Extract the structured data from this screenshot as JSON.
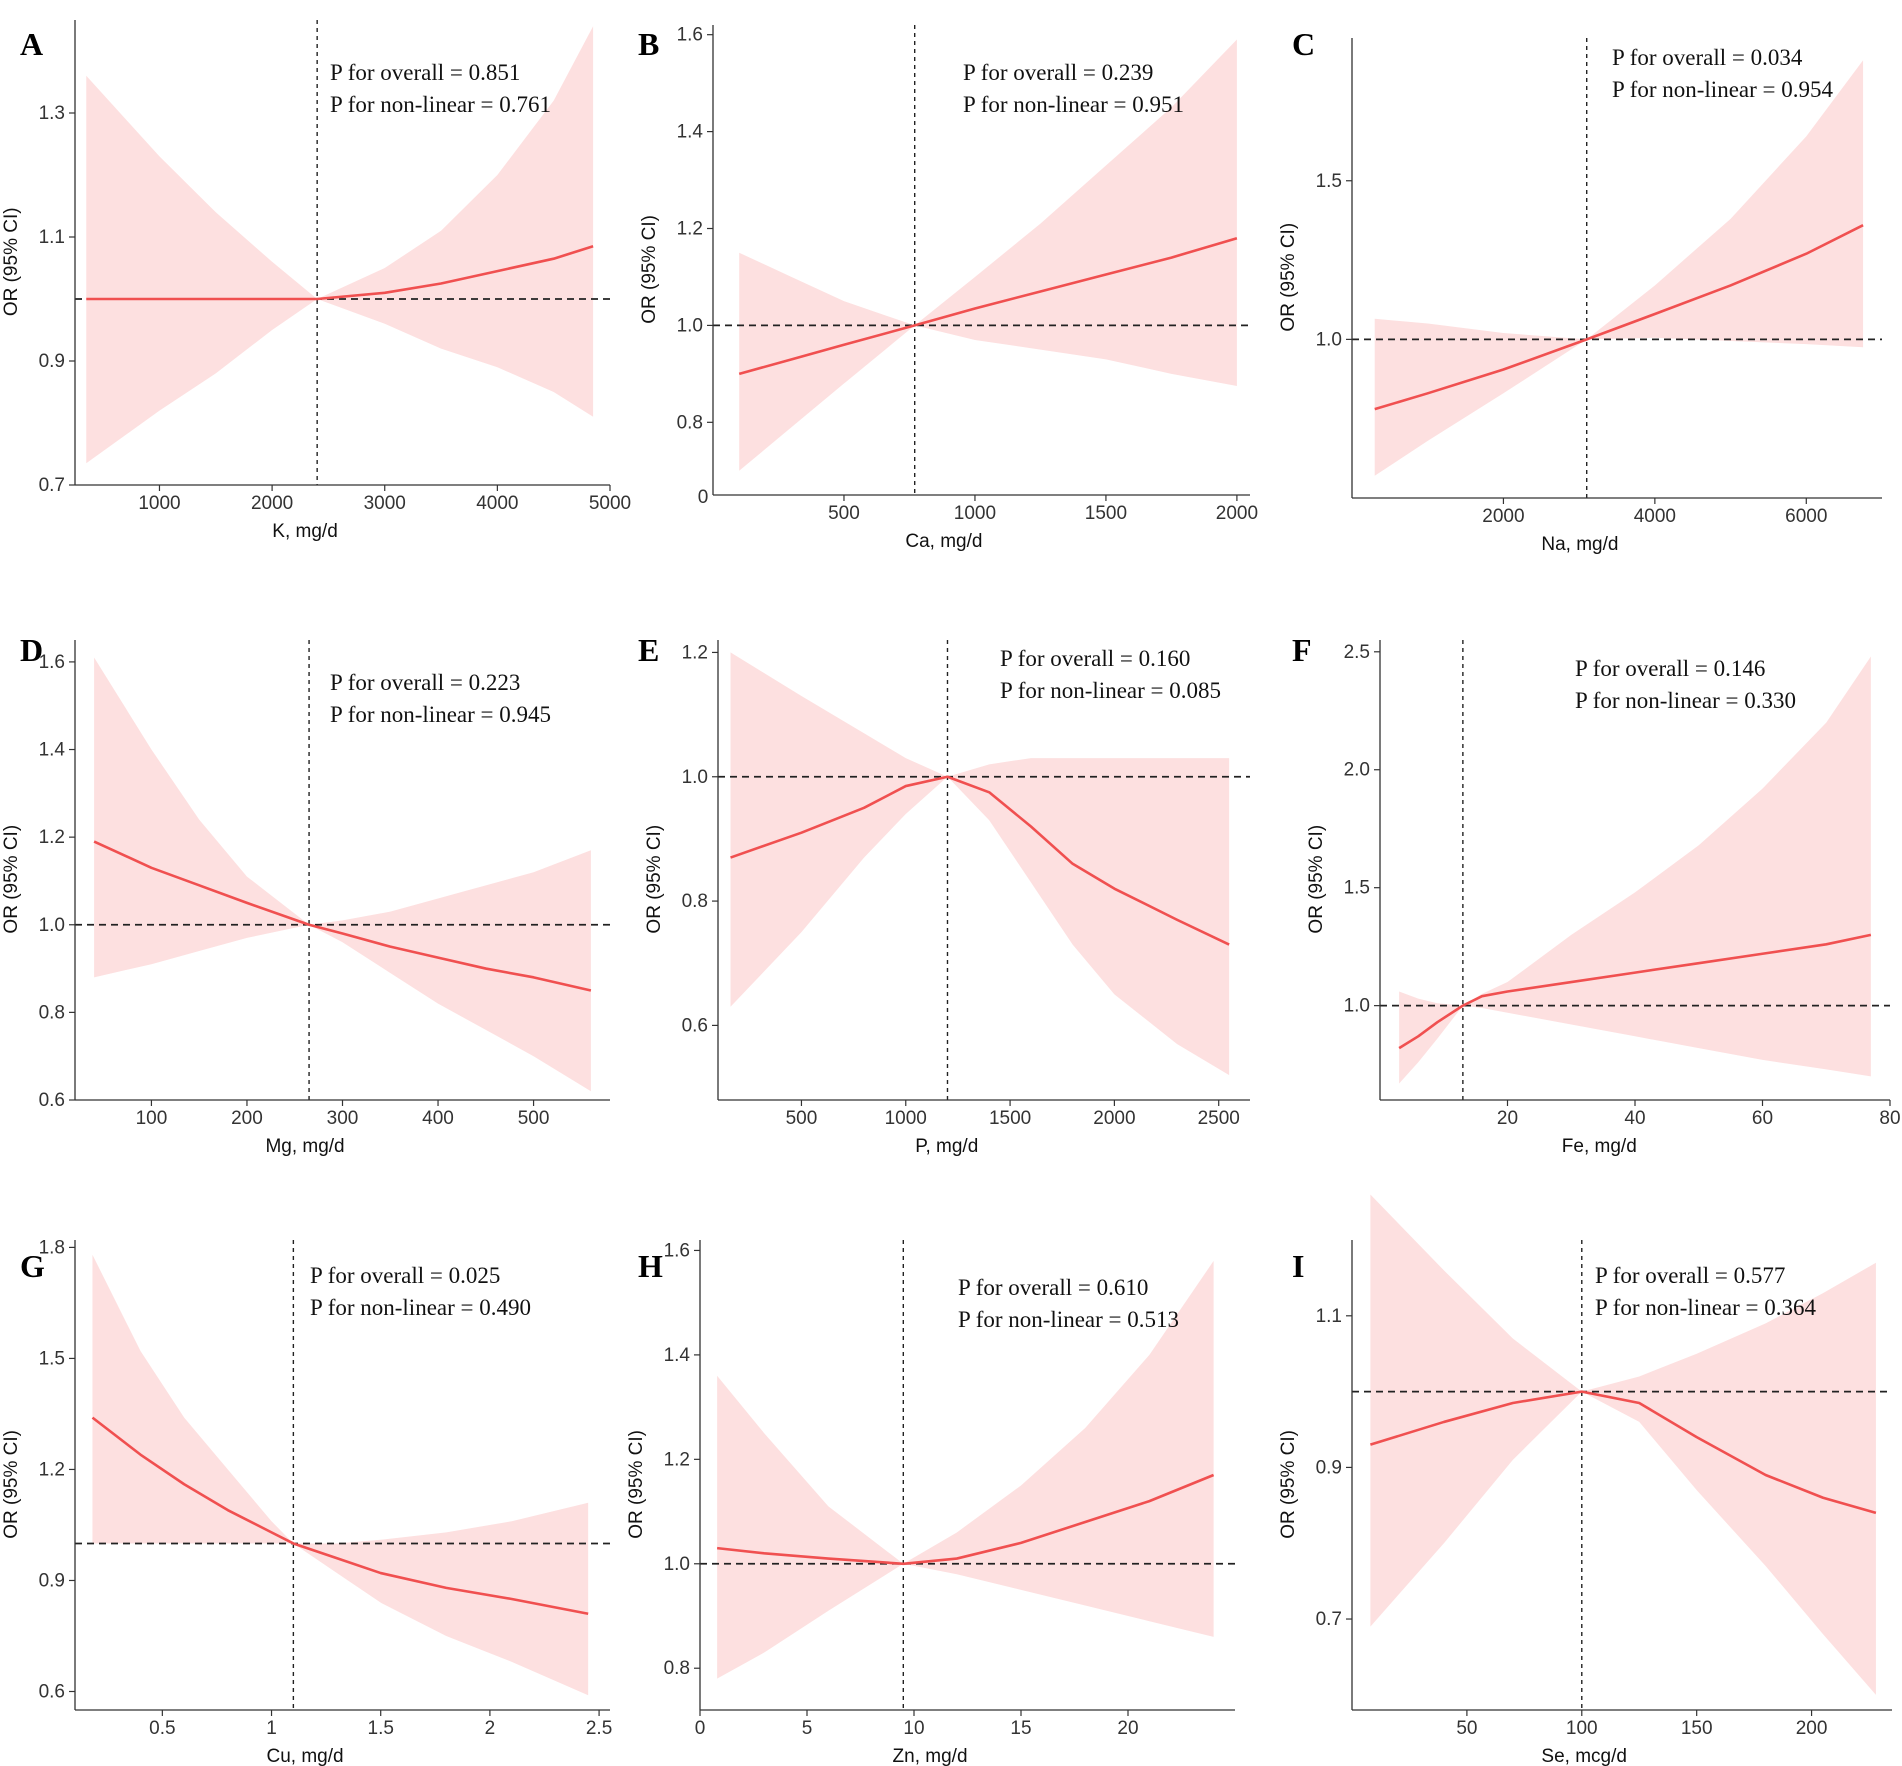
{
  "colors": {
    "line": "#f05050",
    "band": "#fde0e0",
    "ref": "#222222",
    "axis": "#333333"
  },
  "chart_data": [
    {
      "panel": "A",
      "type": "line",
      "xlabel": "K, mg/d",
      "ylabel": "OR (95% CI)",
      "xlim": [
        250,
        5000
      ],
      "ylim": [
        0.7,
        1.45
      ],
      "xticks": [
        1000,
        2000,
        3000,
        4000,
        5000
      ],
      "yticks": [
        0.7,
        0.9,
        1.1,
        1.3
      ],
      "ref_x": 2400,
      "ref_y": 1.0,
      "x": [
        350,
        1000,
        1500,
        2000,
        2400,
        3000,
        3500,
        4000,
        4500,
        4850
      ],
      "y": [
        1.0,
        1.0,
        1.0,
        1.0,
        1.0,
        1.01,
        1.025,
        1.045,
        1.065,
        1.085
      ],
      "lower": [
        0.735,
        0.82,
        0.88,
        0.95,
        1.0,
        0.96,
        0.92,
        0.89,
        0.85,
        0.81
      ],
      "upper": [
        1.36,
        1.23,
        1.14,
        1.06,
        1.0,
        1.05,
        1.11,
        1.2,
        1.32,
        1.44
      ],
      "annotations": [
        "P for overall = 0.851",
        "P for non-linear = 0.761"
      ]
    },
    {
      "panel": "B",
      "type": "line",
      "xlabel": "Ca, mg/d",
      "ylabel": "OR (95% CI)",
      "xlim": [
        0,
        2050
      ],
      "ylim": [
        0.65,
        1.62
      ],
      "xticks": [
        500,
        1000,
        1500,
        2000
      ],
      "yticks": [
        0.8,
        1.0,
        1.2,
        1.4,
        1.6
      ],
      "extra_x_label": "0",
      "ref_x": 770,
      "ref_y": 1.0,
      "x": [
        100,
        300,
        500,
        770,
        1000,
        1250,
        1500,
        1750,
        2000
      ],
      "y": [
        0.9,
        0.93,
        0.96,
        1.0,
        1.035,
        1.07,
        1.105,
        1.14,
        1.18
      ],
      "lower": [
        0.7,
        0.79,
        0.88,
        1.0,
        0.97,
        0.95,
        0.93,
        0.9,
        0.875
      ],
      "upper": [
        1.15,
        1.1,
        1.05,
        1.0,
        1.1,
        1.21,
        1.33,
        1.45,
        1.59
      ],
      "annotations": [
        "P for overall = 0.239",
        "P for non-linear = 0.951"
      ]
    },
    {
      "panel": "C",
      "type": "line",
      "xlabel": "Na, mg/d",
      "ylabel": "OR (95% CI)",
      "xlim": [
        0,
        7000
      ],
      "ylim": [
        0.5,
        1.95
      ],
      "xticks": [
        2000,
        4000,
        6000
      ],
      "yticks": [
        1.0,
        1.5
      ],
      "ref_x": 3100,
      "ref_y": 1.0,
      "x": [
        300,
        1000,
        2000,
        3100,
        4000,
        5000,
        6000,
        6750
      ],
      "y": [
        0.78,
        0.83,
        0.905,
        1.0,
        1.08,
        1.17,
        1.27,
        1.36
      ],
      "lower": [
        0.57,
        0.68,
        0.83,
        1.0,
        1.005,
        0.995,
        0.985,
        0.975
      ],
      "upper": [
        1.065,
        1.05,
        1.02,
        1.0,
        1.17,
        1.38,
        1.64,
        1.88
      ],
      "annotations": [
        "P for overall = 0.034",
        "P for non-linear = 0.954"
      ]
    },
    {
      "panel": "D",
      "type": "line",
      "xlabel": "Mg, mg/d",
      "ylabel": "OR (95% CI)",
      "xlim": [
        20,
        580
      ],
      "ylim": [
        0.6,
        1.65
      ],
      "xticks": [
        100,
        200,
        300,
        400,
        500
      ],
      "yticks": [
        0.6,
        0.8,
        1.0,
        1.2,
        1.4,
        1.6
      ],
      "ref_x": 265,
      "ref_y": 1.0,
      "x": [
        40,
        100,
        150,
        200,
        265,
        300,
        350,
        400,
        450,
        500,
        560
      ],
      "y": [
        1.19,
        1.13,
        1.09,
        1.05,
        1.0,
        0.98,
        0.95,
        0.925,
        0.9,
        0.88,
        0.85
      ],
      "lower": [
        0.88,
        0.91,
        0.94,
        0.97,
        1.0,
        0.96,
        0.89,
        0.82,
        0.76,
        0.7,
        0.62
      ],
      "upper": [
        1.61,
        1.4,
        1.24,
        1.11,
        1.0,
        1.01,
        1.03,
        1.06,
        1.09,
        1.12,
        1.17
      ],
      "annotations": [
        "P for overall = 0.223",
        "P for non-linear = 0.945"
      ]
    },
    {
      "panel": "E",
      "type": "line",
      "xlabel": "P, mg/d",
      "ylabel": "OR (95% CI)",
      "xlim": [
        100,
        2650
      ],
      "ylim": [
        0.48,
        1.22
      ],
      "xticks": [
        500,
        1000,
        1500,
        2000,
        2500
      ],
      "yticks": [
        0.6,
        0.8,
        1.0,
        1.2
      ],
      "ref_x": 1200,
      "ref_y": 1.0,
      "x": [
        160,
        500,
        800,
        1000,
        1200,
        1400,
        1600,
        1800,
        2000,
        2300,
        2550
      ],
      "y": [
        0.87,
        0.91,
        0.95,
        0.985,
        1.0,
        0.975,
        0.92,
        0.86,
        0.82,
        0.77,
        0.73
      ],
      "lower": [
        0.63,
        0.75,
        0.87,
        0.94,
        1.0,
        0.93,
        0.83,
        0.73,
        0.65,
        0.57,
        0.52
      ],
      "upper": [
        1.2,
        1.13,
        1.07,
        1.03,
        1.0,
        1.02,
        1.03,
        1.03,
        1.03,
        1.03,
        1.03
      ],
      "annotations": [
        "P for overall = 0.160",
        "P for non-linear = 0.085"
      ]
    },
    {
      "panel": "F",
      "type": "line",
      "xlabel": "Fe, mg/d",
      "ylabel": "OR (95% CI)",
      "xlim": [
        0,
        80
      ],
      "ylim": [
        0.6,
        2.55
      ],
      "xticks": [
        20,
        40,
        60,
        80
      ],
      "yticks": [
        1.0,
        1.5,
        2.0,
        2.5
      ],
      "ref_x": 13,
      "ref_y": 1.0,
      "x": [
        3,
        6,
        9,
        13,
        16,
        20,
        30,
        40,
        50,
        60,
        70,
        77
      ],
      "y": [
        0.82,
        0.87,
        0.93,
        1.0,
        1.04,
        1.06,
        1.1,
        1.14,
        1.18,
        1.22,
        1.26,
        1.3
      ],
      "lower": [
        0.67,
        0.76,
        0.86,
        1.0,
        0.99,
        0.97,
        0.92,
        0.87,
        0.82,
        0.77,
        0.73,
        0.7
      ],
      "upper": [
        1.06,
        1.03,
        1.01,
        1.0,
        1.05,
        1.1,
        1.3,
        1.48,
        1.68,
        1.92,
        2.2,
        2.48
      ],
      "annotations": [
        "P for overall = 0.146",
        "P for non-linear = 0.330"
      ]
    },
    {
      "panel": "G",
      "type": "line",
      "xlabel": "Cu, mg/d",
      "ylabel": "OR (95% CI)",
      "xlim": [
        0.1,
        2.55
      ],
      "ylim": [
        0.55,
        1.82
      ],
      "xticks": [
        0.5,
        1.0,
        1.5,
        2.0,
        2.5
      ],
      "yticks": [
        0.6,
        0.9,
        1.2,
        1.5,
        1.8
      ],
      "ref_x": 1.1,
      "ref_y": 1.0,
      "x": [
        0.18,
        0.4,
        0.6,
        0.8,
        1.0,
        1.1,
        1.3,
        1.5,
        1.8,
        2.1,
        2.45
      ],
      "y": [
        1.34,
        1.24,
        1.16,
        1.09,
        1.03,
        1.0,
        0.96,
        0.92,
        0.88,
        0.85,
        0.81
      ],
      "lower": [
        1.0,
        1.0,
        1.0,
        1.0,
        1.0,
        1.0,
        0.92,
        0.84,
        0.75,
        0.68,
        0.59
      ],
      "upper": [
        1.78,
        1.52,
        1.34,
        1.2,
        1.06,
        1.0,
        1.0,
        1.01,
        1.03,
        1.06,
        1.11
      ],
      "annotations": [
        "P for overall = 0.025",
        "P for non-linear = 0.490"
      ]
    },
    {
      "panel": "H",
      "type": "line",
      "xlabel": "Zn, mg/d",
      "ylabel": "OR (95% CI)",
      "xlim": [
        0,
        25
      ],
      "ylim": [
        0.72,
        1.62
      ],
      "xticks": [
        0,
        5,
        10,
        15,
        20
      ],
      "yticks": [
        0.8,
        1.0,
        1.2,
        1.4,
        1.6
      ],
      "ref_x": 9.5,
      "ref_y": 1.0,
      "x": [
        0.8,
        3,
        6,
        9.5,
        12,
        15,
        18,
        21,
        24
      ],
      "y": [
        1.03,
        1.02,
        1.01,
        1.0,
        1.01,
        1.04,
        1.08,
        1.12,
        1.17
      ],
      "lower": [
        0.78,
        0.83,
        0.91,
        1.0,
        0.98,
        0.95,
        0.92,
        0.89,
        0.86
      ],
      "upper": [
        1.36,
        1.25,
        1.11,
        1.0,
        1.06,
        1.15,
        1.26,
        1.4,
        1.58
      ],
      "annotations": [
        "P for overall = 0.610",
        "P for non-linear = 0.513"
      ]
    },
    {
      "panel": "I",
      "type": "line",
      "xlabel": "Se, mcg/d",
      "ylabel": "OR (95% CI)",
      "xlim": [
        0,
        235
      ],
      "ylim": [
        0.58,
        1.2
      ],
      "xticks": [
        50,
        100,
        150,
        200
      ],
      "yticks": [
        0.7,
        0.9,
        1.1
      ],
      "ref_x": 100,
      "ref_y": 1.0,
      "x": [
        8,
        40,
        70,
        100,
        125,
        150,
        180,
        205,
        228
      ],
      "y": [
        0.93,
        0.96,
        0.985,
        1.0,
        0.985,
        0.94,
        0.89,
        0.86,
        0.84
      ],
      "lower": [
        0.69,
        0.8,
        0.91,
        1.0,
        0.96,
        0.87,
        0.77,
        0.68,
        0.6
      ],
      "upper": [
        1.26,
        1.16,
        1.07,
        1.0,
        1.02,
        1.05,
        1.09,
        1.13,
        1.17
      ],
      "annotations": [
        "P for overall = 0.577",
        "P for non-linear = 0.364"
      ]
    }
  ]
}
